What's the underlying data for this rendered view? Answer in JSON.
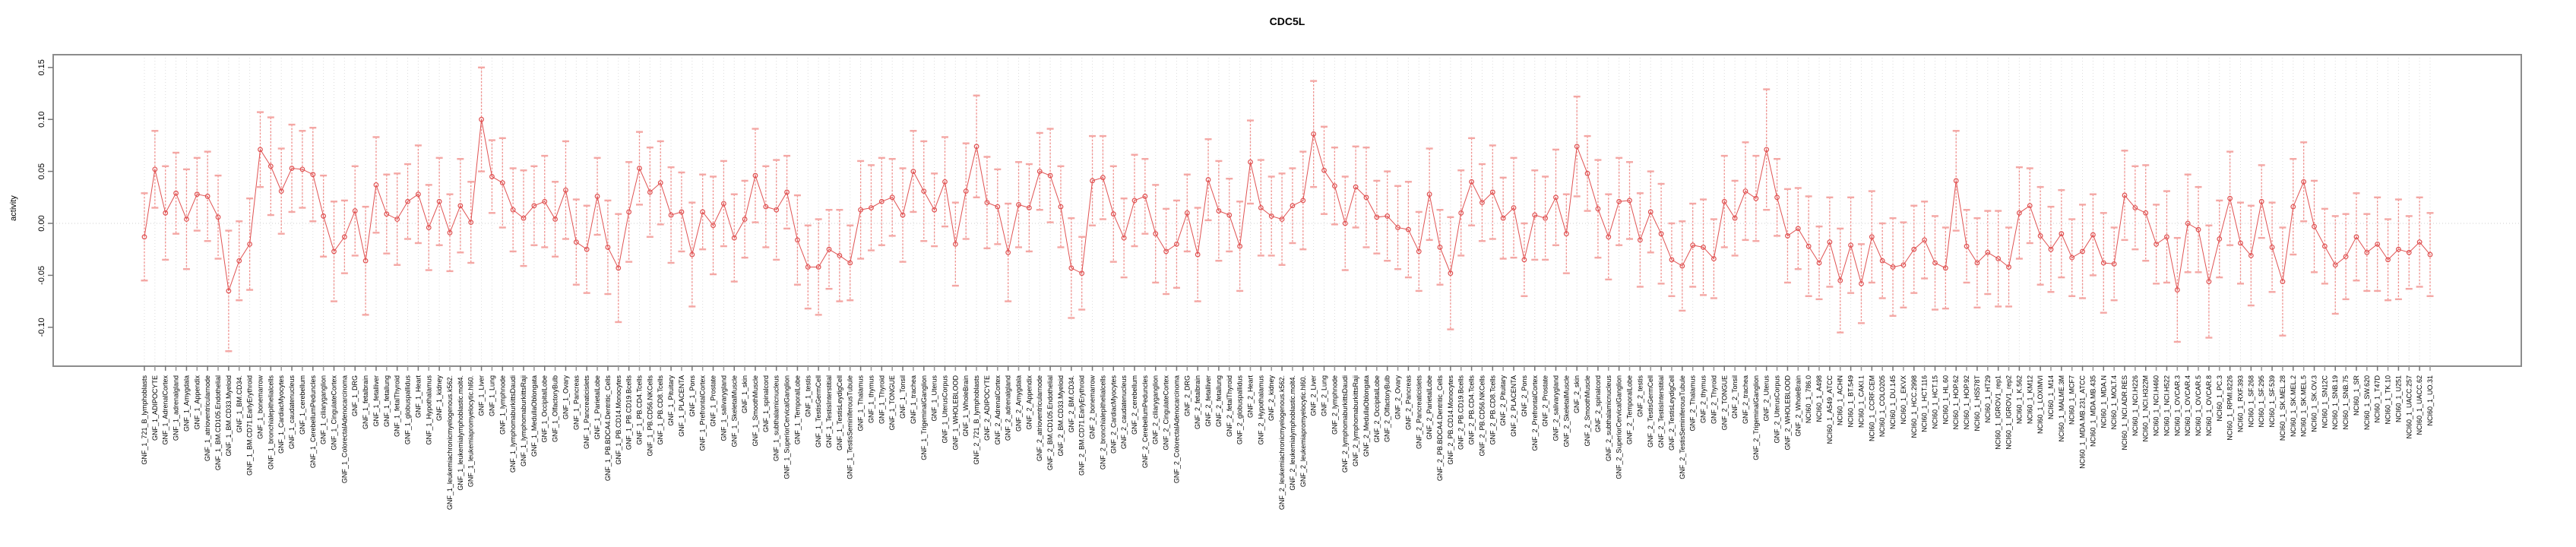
{
  "title": "CDC5L",
  "chart_data": {
    "type": "line",
    "subtype": "points-with-error-bars",
    "title": "CDC5L",
    "xlabel": "",
    "ylabel": "activity",
    "ylim": [
      -0.137,
      0.162
    ],
    "y_ticks": [
      0.15,
      0.1,
      0.05,
      0.0,
      -0.05,
      -0.1
    ],
    "grid": "vertical-dotted-per-category",
    "zero_line": true,
    "legend": "none",
    "point_style": "open-circle",
    "colors": {
      "series_line": "#e05252",
      "point_stroke": "#e05252",
      "error_bar": "#f0908d",
      "error_cap": "#f4a7a4",
      "plot_border": "#8c8c8c",
      "gridline": "#dcdcdc",
      "zero_line": "#cfcfcf",
      "tick": "#777777",
      "label_text": "#000000"
    },
    "categories": [
      "GNF_1_721_B_lymphoblasts",
      "GNF_1_ADIPOCYTE",
      "GNF_1_AdrenalCortex",
      "GNF_1_adrenalgland",
      "GNF_1_Amygdala",
      "GNF_1_Appendix",
      "GNF_1_atrioventricularnode",
      "GNF_1_BM.CD105.Endothelial",
      "GNF_1_BM.CD33.Myeloid",
      "GNF_1_BM.CD34.",
      "GNF_1_BM.CD71.EarlyErythroid",
      "GNF_1_bonemarrow",
      "GNF_1_bronchialepithelialcells",
      "GNF_1_CardiacMyocytes",
      "GNF_1_caudatenucleus",
      "GNF_1_cerebellum",
      "GNF_1_CerebellumPeduncles",
      "GNF_1_ciliaryganglion",
      "GNF_1_CingulateCortex",
      "GNF_1_ColorectalAdenocarcinoma",
      "GNF_1_DRG",
      "GNF_1_fetalbrain",
      "GNF_1_fetalliver",
      "GNF_1_fetallung",
      "GNF_1_fetalThyroid",
      "GNF_1_globuspallidus",
      "GNF_1_Heart",
      "GNF_1_Hypothalamus",
      "GNF_1_kidney",
      "GNF_1_leukemiachronicmyelogenous.k562.",
      "GNF_1_leukemialymphoblastic.molt4.",
      "GNF_1_leukemiapromyelocytic.hl60.",
      "GNF_1_Liver",
      "GNF_1_Lung",
      "GNF_1_lymphnode",
      "GNF_1_lymphomaburkittsDaudi",
      "GNF_1_lymphomaburkittsRaji",
      "GNF_1_MedullaOblongata",
      "GNF_1_OccipitalLobe",
      "GNF_1_OlfactoryBulb",
      "GNF_1_Ovary",
      "GNF_1_Pancreas",
      "GNF_1_Pancreaticislets",
      "GNF_1_ParietalLobe",
      "GNF_1_PB.BDCA4.Dentritic_Cells",
      "GNF_1_PB.CD14.Monocytes",
      "GNF_1_PB.CD19.Bcells",
      "GNF_1_PB.CD4.Tcells",
      "GNF_1_PB.CD56.NKCells",
      "GNF_1_PB.CD8.Tcells",
      "GNF_1_Pituitary",
      "GNF_1_PLACENTA",
      "GNF_1_Pons",
      "GNF_1_PrefrontalCortex",
      "GNF_1_Prostate",
      "GNF_1_salivarygland",
      "GNF_1_SkeletalMuscle",
      "GNF_1_skin",
      "GNF_1_SmoothMuscle",
      "GNF_1_spinalcord",
      "GNF_1_subthalamicnucleus",
      "GNF_1_SuperiorCervicalGanglion",
      "GNF_1_TemporalLobe",
      "GNF_1_testis",
      "GNF_1_TestisGermCell",
      "GNF_1_TestisInterstitial",
      "GNF_1_TestisLeydigCell",
      "GNF_1_TestisSeminiferousTubule",
      "GNF_1_Thalamus",
      "GNF_1_thymus",
      "GNF_1_Thyroid",
      "GNF_1_TONGUE",
      "GNF_1_Tonsil",
      "GNF_1_trachea",
      "GNF_1_TrigeminalGanglion",
      "GNF_1_Uterus",
      "GNF_1_UterusCorpus",
      "GNF_1_WHOLEBLOOD",
      "GNF_1_WholeBrain",
      "GNF_2_721_B_lymphoblasts",
      "GNF_2_ADIPOCYTE",
      "GNF_2_AdrenalCortex",
      "GNF_2_adrenalgland",
      "GNF_2_Amygdala",
      "GNF_2_Appendix",
      "GNF_2_atrioventricularnode",
      "GNF_2_BM.CD105.Endothelial",
      "GNF_2_BM.CD33.Myeloid",
      "GNF_2_BM.CD34.",
      "GNF_2_BM.CD71.EarlyErythroid",
      "GNF_2_bonemarrow",
      "GNF_2_bronchialepithelialcells",
      "GNF_2_CardiacMyocytes",
      "GNF_2_caudatenucleus",
      "GNF_2_cerebellum",
      "GNF_2_CerebellumPeduncles",
      "GNF_2_ciliaryganglion",
      "GNF_2_CingulateCortex",
      "GNF_2_ColorectalAdenocarcinoma",
      "GNF_2_DRG",
      "GNF_2_fetalbrain",
      "GNF_2_fetalliver",
      "GNF_2_fetallung",
      "GNF_2_fetalThyroid",
      "GNF_2_globuspallidus",
      "GNF_2_Heart",
      "GNF_2_Hypothalamus",
      "GNF_2_kidney",
      "GNF_2_leukemiachronicmyelogenous.k562.",
      "GNF_2_leukemialymphoblastic.molt4.",
      "GNF_2_leukemiapromyelocytic.hl60.",
      "GNF_2_Liver",
      "GNF_2_Lung",
      "GNF_2_lymphnode",
      "GNF_2_lymphomaburkittsDaudi",
      "GNF_2_lymphomaburkittsRaji",
      "GNF_2_MedullaOblongata",
      "GNF_2_OccipitalLobe",
      "GNF_2_OlfactoryBulb",
      "GNF_2_Ovary",
      "GNF_2_Pancreas",
      "GNF_2_Pancreaticislets",
      "GNF_2_ParietalLobe",
      "GNF_2_PB.BDCA4.Dentritic_Cells",
      "GNF_2_PB.CD14.Monocytes",
      "GNF_2_PB.CD19.Bcells",
      "GNF_2_PB.CD4.Tcells",
      "GNF_2_PB.CD56.NKCells",
      "GNF_2_PB.CD8.Tcells",
      "GNF_2_Pituitary",
      "GNF_2_PLACENTA",
      "GNF_2_Pons",
      "GNF_2_PrefrontalCortex",
      "GNF_2_Prostate",
      "GNF_2_salivarygland",
      "GNF_2_SkeletalMuscle",
      "GNF_2_skin",
      "GNF_2_SmoothMuscle",
      "GNF_2_spinalcord",
      "GNF_2_subthalamicnucleus",
      "GNF_2_SuperiorCervicalGanglion",
      "GNF_2_TemporalLobe",
      "GNF_2_testis",
      "GNF_2_TestisGermCell",
      "GNF_2_TestisInterstitial",
      "GNF_2_TestisLeydigCell",
      "GNF_2_TestisSeminiferousTubule",
      "GNF_2_Thalamus",
      "GNF_2_thymus",
      "GNF_2_Thyroid",
      "GNF_2_TONGUE",
      "GNF_2_Tonsil",
      "GNF_2_trachea",
      "GNF_2_TrigeminalGanglion",
      "GNF_2_Uterus",
      "GNF_2_UterusCorpus",
      "GNF_2_WHOLEBLOOD",
      "GNF_2_WholeBrain",
      "NCI60_1_786.0",
      "NCI60_1_A498",
      "NCI60_1_A549_ATCC",
      "NCI60_1_ACHN",
      "NCI60_1_BT.549",
      "NCI60_1_CAKI.1",
      "NCI60_1_CCRF.CEM",
      "NCI60_1_COLO205",
      "NCI60_1_DU.145",
      "NCI60_1_EKVX",
      "NCI60_1_HCC.2998",
      "NCI60_1_HCT.116",
      "NCI60_1_HCT.15",
      "NCI60_1_HL.60",
      "NCI60_1_HOP.62",
      "NCI60_1_HOP.92",
      "NCI60_1_HS578T",
      "NCI60_1_HT29",
      "NCI60_1_IGROV1_rep1",
      "NCI60_1_IGROV1_rep2",
      "NCI60_1_K.562",
      "NCI60_1_KM12",
      "NCI60_1_LOXIMVI",
      "NCI60_1_M14",
      "NCI60_1_MALME.3M",
      "NCI60_1_MCF7",
      "NCI60_1_MDA.MB.231_ATCC",
      "NCI60_1_MDA.MB.435",
      "NCI60_1_MDA.N",
      "NCI60_1_MOLT.4",
      "NCI60_1_NCI.ADR.RES",
      "NCI60_1_NCI.H226",
      "NCI60_1_NCI.H322M",
      "NCI60_1_NCI.H460",
      "NCI60_1_NCI.H522",
      "NCI60_1_OVCAR.3",
      "NCI60_1_OVCAR.4",
      "NCI60_1_OVCAR.5",
      "NCI60_1_OVCAR.8",
      "NCI60_1_PC.3",
      "NCI60_1_RPMI.8226",
      "NCI60_1_RXF.393",
      "NCI60_1_SF.268",
      "NCI60_1_SF.295",
      "NCI60_1_SF.539",
      "NCI60_1_SK.MEL.28",
      "NCI60_1_SK.MEL.2",
      "NCI60_1_SK.MEL.5",
      "NCI60_1_SK.OV.3",
      "NCI60_1_SN12C",
      "NCI60_1_SNB.19",
      "NCI60_1_SNB.75",
      "NCI60_1_SR",
      "NCI60_1_SW.620",
      "NCI60_1_T47D",
      "NCI60_1_TK.10",
      "NCI60_1_U251",
      "NCI60_1_UACC.257",
      "NCI60_1_UACC.62",
      "NCI60_1_UO.31"
    ],
    "values": [
      -0.013,
      0.052,
      0.01,
      0.029,
      0.004,
      0.028,
      0.026,
      0.006,
      -0.065,
      -0.036,
      -0.02,
      0.071,
      0.055,
      0.031,
      0.053,
      0.052,
      0.047,
      0.007,
      -0.027,
      -0.013,
      0.012,
      -0.036,
      0.037,
      0.009,
      0.004,
      0.021,
      0.028,
      -0.004,
      0.021,
      -0.009,
      0.017,
      0.001,
      0.1,
      0.045,
      0.039,
      0.013,
      0.005,
      0.017,
      0.021,
      0.004,
      0.032,
      -0.018,
      -0.025,
      0.026,
      -0.023,
      -0.043,
      0.011,
      0.053,
      0.03,
      0.039,
      0.008,
      0.011,
      -0.03,
      0.011,
      -0.002,
      0.019,
      -0.014,
      0.004,
      0.046,
      0.016,
      0.013,
      0.03,
      -0.016,
      -0.042,
      -0.042,
      -0.025,
      -0.031,
      -0.038,
      0.013,
      0.015,
      0.021,
      0.025,
      0.008,
      0.05,
      0.031,
      0.013,
      0.04,
      -0.02,
      0.031,
      0.074,
      0.02,
      0.016,
      -0.028,
      0.018,
      0.015,
      0.05,
      0.046,
      0.016,
      -0.043,
      -0.048,
      0.041,
      0.044,
      0.009,
      -0.014,
      0.022,
      0.026,
      -0.01,
      -0.027,
      -0.02,
      0.01,
      -0.03,
      0.042,
      0.012,
      0.008,
      -0.022,
      0.059,
      0.015,
      0.007,
      0.004,
      0.017,
      0.022,
      0.086,
      0.051,
      0.036,
      0.0,
      0.035,
      0.025,
      0.006,
      0.007,
      -0.004,
      -0.006,
      -0.027,
      0.028,
      -0.023,
      -0.048,
      0.01,
      0.04,
      0.02,
      0.03,
      0.005,
      0.015,
      -0.035,
      0.008,
      0.005,
      0.025,
      -0.01,
      0.074,
      0.048,
      0.014,
      -0.013,
      0.021,
      0.022,
      -0.016,
      0.011,
      -0.01,
      -0.035,
      -0.041,
      -0.021,
      -0.023,
      -0.034,
      0.021,
      0.005,
      0.031,
      0.024,
      0.071,
      0.025,
      -0.012,
      -0.005,
      -0.022,
      -0.038,
      -0.018,
      -0.055,
      -0.021,
      -0.058,
      -0.013,
      -0.036,
      -0.042,
      -0.04,
      -0.025,
      -0.016,
      -0.038,
      -0.043,
      0.041,
      -0.022,
      -0.038,
      -0.028,
      -0.034,
      -0.042,
      0.01,
      0.017,
      -0.012,
      -0.025,
      -0.01,
      -0.033,
      -0.027,
      -0.011,
      -0.038,
      -0.039,
      0.027,
      0.015,
      0.01,
      -0.02,
      -0.013,
      -0.064,
      0.0,
      -0.006,
      -0.056,
      -0.015,
      0.024,
      -0.019,
      -0.031,
      0.021,
      -0.023,
      -0.056,
      0.016,
      0.04,
      -0.003,
      -0.022,
      -0.04,
      -0.032,
      -0.013,
      -0.028,
      -0.02,
      -0.035,
      -0.025,
      -0.028,
      -0.018,
      -0.03
    ],
    "errors": [
      0.042,
      0.037,
      0.045,
      0.039,
      0.048,
      0.035,
      0.043,
      0.04,
      0.058,
      0.038,
      0.044,
      0.036,
      0.047,
      0.041,
      0.042,
      0.037,
      0.045,
      0.039,
      0.048,
      0.035,
      0.043,
      0.052,
      0.046,
      0.038,
      0.044,
      0.036,
      0.047,
      0.041,
      0.042,
      0.037,
      0.045,
      0.039,
      0.05,
      0.035,
      0.043,
      0.04,
      0.046,
      0.038,
      0.044,
      0.036,
      0.047,
      0.041,
      0.042,
      0.037,
      0.045,
      0.052,
      0.048,
      0.035,
      0.043,
      0.04,
      0.046,
      0.038,
      0.05,
      0.036,
      0.047,
      0.041,
      0.042,
      0.037,
      0.045,
      0.039,
      0.048,
      0.035,
      0.043,
      0.04,
      0.046,
      0.038,
      0.044,
      0.036,
      0.047,
      0.041,
      0.042,
      0.037,
      0.045,
      0.039,
      0.048,
      0.035,
      0.043,
      0.04,
      0.046,
      0.049,
      0.044,
      0.036,
      0.047,
      0.041,
      0.042,
      0.037,
      0.045,
      0.039,
      0.048,
      0.035,
      0.043,
      0.04,
      0.046,
      0.038,
      0.044,
      0.036,
      0.047,
      0.041,
      0.042,
      0.037,
      0.045,
      0.039,
      0.048,
      0.035,
      0.043,
      0.04,
      0.046,
      0.038,
      0.044,
      0.036,
      0.047,
      0.051,
      0.042,
      0.037,
      0.045,
      0.039,
      0.048,
      0.035,
      0.043,
      0.04,
      0.046,
      0.038,
      0.044,
      0.036,
      0.054,
      0.041,
      0.042,
      0.037,
      0.045,
      0.039,
      0.048,
      0.035,
      0.043,
      0.04,
      0.046,
      0.038,
      0.048,
      0.036,
      0.047,
      0.041,
      0.042,
      0.037,
      0.045,
      0.039,
      0.048,
      0.035,
      0.043,
      0.04,
      0.046,
      0.038,
      0.044,
      0.036,
      0.047,
      0.041,
      0.058,
      0.037,
      0.045,
      0.039,
      0.048,
      0.035,
      0.043,
      0.05,
      0.046,
      0.038,
      0.044,
      0.036,
      0.047,
      0.041,
      0.042,
      0.037,
      0.045,
      0.039,
      0.048,
      0.035,
      0.043,
      0.04,
      0.046,
      0.038,
      0.044,
      0.036,
      0.047,
      0.041,
      0.042,
      0.037,
      0.045,
      0.039,
      0.048,
      0.035,
      0.043,
      0.04,
      0.046,
      0.038,
      0.044,
      0.05,
      0.047,
      0.041,
      0.054,
      0.037,
      0.045,
      0.039,
      0.048,
      0.035,
      0.043,
      0.052,
      0.046,
      0.038,
      0.044,
      0.036,
      0.047,
      0.041,
      0.042,
      0.037,
      0.045,
      0.039,
      0.048,
      0.035,
      0.043,
      0.04
    ]
  }
}
